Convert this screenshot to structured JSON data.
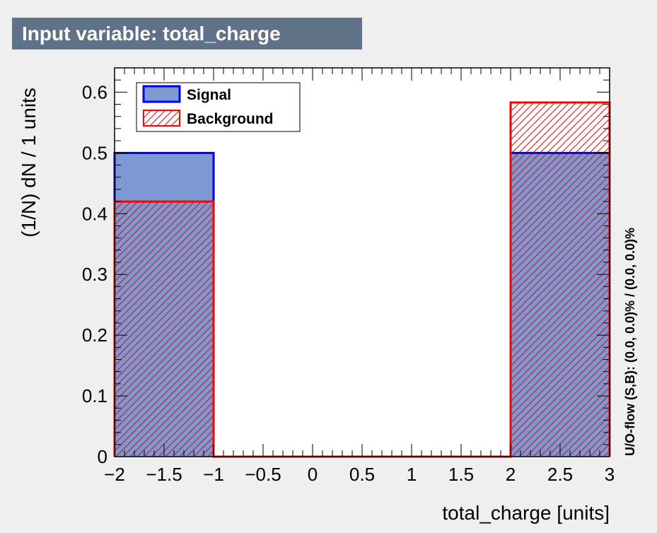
{
  "chart_data": {
    "type": "bar",
    "title": "Input variable: total_charge",
    "xlabel": "total_charge  [units]",
    "ylabel": "(1/N) dN / 1 units",
    "side_label": "U/O-flow (S,B): (0.0, 0.0)% / (0.0, 0.0)%",
    "xlim": [
      -2,
      3
    ],
    "ylim": [
      0,
      0.64
    ],
    "xticks": [
      {
        "v": -2,
        "label": "−2"
      },
      {
        "v": -1.5,
        "label": "−1.5"
      },
      {
        "v": -1,
        "label": "−1"
      },
      {
        "v": -0.5,
        "label": "−0.5"
      },
      {
        "v": 0,
        "label": "0"
      },
      {
        "v": 0.5,
        "label": "0.5"
      },
      {
        "v": 1,
        "label": "1"
      },
      {
        "v": 1.5,
        "label": "1.5"
      },
      {
        "v": 2,
        "label": "2"
      },
      {
        "v": 2.5,
        "label": "2.5"
      },
      {
        "v": 3,
        "label": "3"
      }
    ],
    "yticks": [
      {
        "v": 0,
        "label": "0"
      },
      {
        "v": 0.1,
        "label": "0.1"
      },
      {
        "v": 0.2,
        "label": "0.2"
      },
      {
        "v": 0.3,
        "label": "0.3"
      },
      {
        "v": 0.4,
        "label": "0.4"
      },
      {
        "v": 0.5,
        "label": "0.5"
      },
      {
        "v": 0.6,
        "label": "0.6"
      }
    ],
    "bin_edges": [
      -2,
      -1,
      2,
      3
    ],
    "series": [
      {
        "name": "Signal",
        "values": [
          0.5,
          0,
          0.5
        ],
        "fill": "#7d99d1",
        "line": "#0000ee",
        "style": "solid"
      },
      {
        "name": "Background",
        "values": [
          0.42,
          0,
          0.583
        ],
        "fill": "#ff0000",
        "line": "#ff0000",
        "style": "hatched"
      }
    ],
    "legend_position": "top-left",
    "grid": false
  }
}
